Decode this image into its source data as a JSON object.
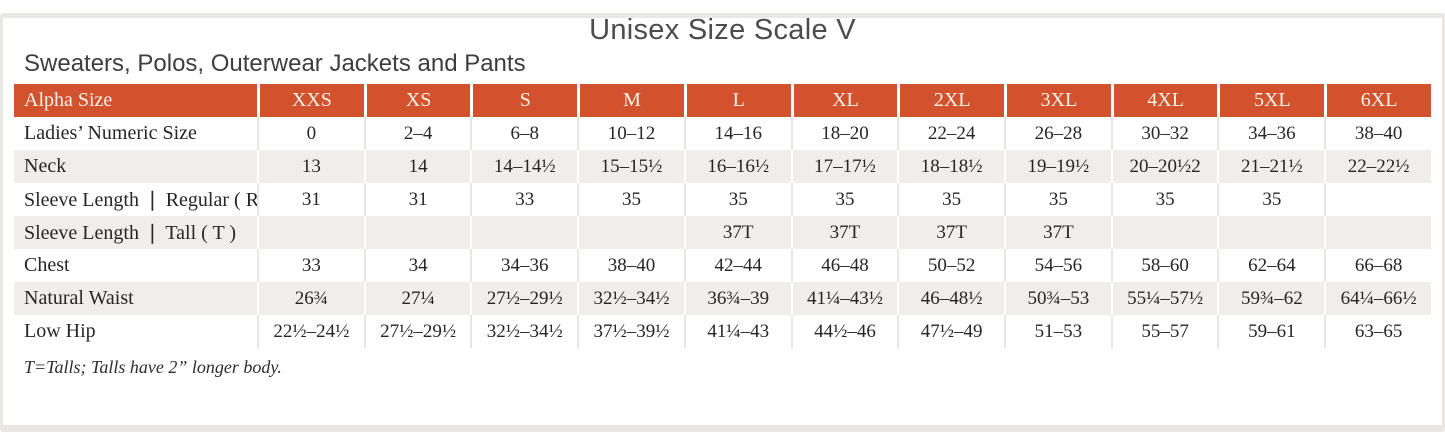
{
  "page": {
    "title": "Unisex Size Scale V",
    "subtitle": "Sweaters, Polos, Outerwear Jackets and Pants",
    "footnote": "T=Talls; Talls have 2” longer body."
  },
  "colors": {
    "header_bg": "#d1522c",
    "header_fg": "#faf1ea",
    "alt_row_bg": "#f0eeea"
  },
  "table": {
    "header": [
      "Alpha Size",
      "XXS",
      "XS",
      "S",
      "M",
      "L",
      "XL",
      "2XL",
      "3XL",
      "4XL",
      "5XL",
      "6XL"
    ],
    "rows": [
      {
        "label": "Ladies’ Numeric Size",
        "values": [
          "0",
          "2–4",
          "6–8",
          "10–12",
          "14–16",
          "18–20",
          "22–24",
          "26–28",
          "30–32",
          "34–36",
          "38–40"
        ]
      },
      {
        "label": "Neck",
        "values": [
          "13",
          "14",
          "14–14½",
          "15–15½",
          "16–16½",
          "17–17½",
          "18–18½",
          "19–19½",
          "20–20½2",
          "21–21½",
          "22–22½"
        ]
      },
      {
        "label": "Sleeve Length ❘ Regular ( R )",
        "values": [
          "31",
          "31",
          "33",
          "35",
          "35",
          "35",
          "35",
          "35",
          "35",
          "35",
          ""
        ]
      },
      {
        "label": "Sleeve Length ❘ Tall ( T )",
        "values": [
          "",
          "",
          "",
          "",
          "37T",
          "37T",
          "37T",
          "37T",
          "",
          "",
          ""
        ]
      },
      {
        "label": "Chest",
        "values": [
          "33",
          "34",
          "34–36",
          "38–40",
          "42–44",
          "46–48",
          "50–52",
          "54–56",
          "58–60",
          "62–64",
          "66–68"
        ]
      },
      {
        "label": "Natural Waist",
        "values": [
          "26¾",
          "27¼",
          "27½–29½",
          "32½–34½",
          "36¾–39",
          "41¼–43½",
          "46–48½",
          "50¾–53",
          "55¼–57½",
          "59¾–62",
          "64¼–66½"
        ]
      },
      {
        "label": "Low Hip",
        "values": [
          "22½–24½",
          "27½–29½",
          "32½–34½",
          "37½–39½",
          "41¼–43",
          "44½–46",
          "47½–49",
          "51–53",
          "55–57",
          "59–61",
          "63–65"
        ]
      }
    ]
  }
}
